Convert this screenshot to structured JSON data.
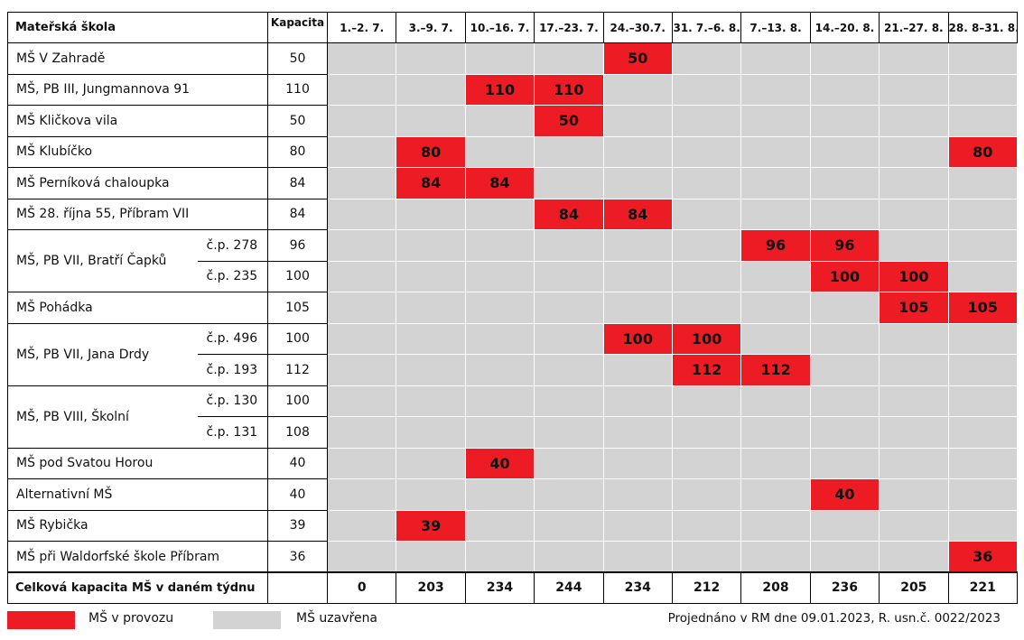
{
  "table": {
    "header": {
      "name": "Mateřská škola",
      "capacity": "Kapacita",
      "weeks": [
        "1.–2. 7.",
        "3.–9. 7.",
        "10.–16. 7.",
        "17.–23. 7.",
        "24.–30.7.",
        "31. 7.–6. 8.",
        "7.–13. 8.",
        "14.–20. 8.",
        "21.–27. 8.",
        "28. 8–31. 8."
      ]
    },
    "rows": [
      {
        "name": "MŠ V Zahradě",
        "capacity": 50,
        "cells": [
          null,
          null,
          null,
          null,
          50,
          null,
          null,
          null,
          null,
          null
        ]
      },
      {
        "name": "MŠ, PB III, Jungmannova 91",
        "capacity": 110,
        "cells": [
          null,
          null,
          110,
          110,
          null,
          null,
          null,
          null,
          null,
          null
        ]
      },
      {
        "name": "MŠ Kličkova vila",
        "capacity": 50,
        "cells": [
          null,
          null,
          null,
          50,
          null,
          null,
          null,
          null,
          null,
          null
        ]
      },
      {
        "name": "MŠ Klubíčko",
        "capacity": 80,
        "cells": [
          null,
          80,
          null,
          null,
          null,
          null,
          null,
          null,
          null,
          80
        ]
      },
      {
        "name": "MŠ Perníková chaloupka",
        "capacity": 84,
        "cells": [
          null,
          84,
          84,
          null,
          null,
          null,
          null,
          null,
          null,
          null
        ]
      },
      {
        "name": "MŠ 28. října 55, Příbram VII",
        "capacity": 84,
        "cells": [
          null,
          null,
          null,
          84,
          84,
          null,
          null,
          null,
          null,
          null
        ]
      },
      {
        "name": "MŠ, PB VII, Bratří Čapků",
        "units": [
          {
            "unit": "č.p. 278",
            "capacity": 96,
            "cells": [
              null,
              null,
              null,
              null,
              null,
              null,
              96,
              96,
              null,
              null
            ]
          },
          {
            "unit": "č.p. 235",
            "capacity": 100,
            "cells": [
              null,
              null,
              null,
              null,
              null,
              null,
              null,
              100,
              100,
              null
            ]
          }
        ]
      },
      {
        "name": "MŠ Pohádka",
        "capacity": 105,
        "cells": [
          null,
          null,
          null,
          null,
          null,
          null,
          null,
          null,
          105,
          105
        ]
      },
      {
        "name": "MŠ, PB VII, Jana Drdy",
        "units": [
          {
            "unit": "č.p. 496",
            "capacity": 100,
            "cells": [
              null,
              null,
              null,
              null,
              100,
              100,
              null,
              null,
              null,
              null
            ]
          },
          {
            "unit": "č.p. 193",
            "capacity": 112,
            "cells": [
              null,
              null,
              null,
              null,
              null,
              112,
              112,
              null,
              null,
              null
            ]
          }
        ]
      },
      {
        "name": "MŠ, PB VIII, Školní",
        "units": [
          {
            "unit": "č.p. 130",
            "capacity": 100,
            "cells": [
              null,
              null,
              null,
              null,
              null,
              null,
              null,
              null,
              null,
              null
            ]
          },
          {
            "unit": "č.p. 131",
            "capacity": 108,
            "cells": [
              null,
              null,
              null,
              null,
              null,
              null,
              null,
              null,
              null,
              null
            ]
          }
        ]
      },
      {
        "name": "MŠ pod Svatou Horou",
        "capacity": 40,
        "cells": [
          null,
          null,
          40,
          null,
          null,
          null,
          null,
          null,
          null,
          null
        ]
      },
      {
        "name": "Alternativní MŠ",
        "capacity": 40,
        "cells": [
          null,
          null,
          null,
          null,
          null,
          null,
          null,
          40,
          null,
          null
        ]
      },
      {
        "name": "MŠ Rybička",
        "capacity": 39,
        "cells": [
          null,
          39,
          null,
          null,
          null,
          null,
          null,
          null,
          null,
          null
        ]
      },
      {
        "name": "MŠ při Waldorfské škole Příbram",
        "capacity": 36,
        "cells": [
          null,
          null,
          null,
          null,
          null,
          null,
          null,
          null,
          null,
          36
        ]
      }
    ],
    "total": {
      "label": "Celková kapacita MŠ v daném týdnu",
      "values": [
        0,
        203,
        234,
        244,
        234,
        212,
        208,
        236,
        205,
        221
      ]
    }
  },
  "legend": {
    "open": "MŠ v provozu",
    "closed": "MŠ uzavřena"
  },
  "note": "Projednáno v RM dne 09.01.2023, R. usn.č. 0022/2023"
}
